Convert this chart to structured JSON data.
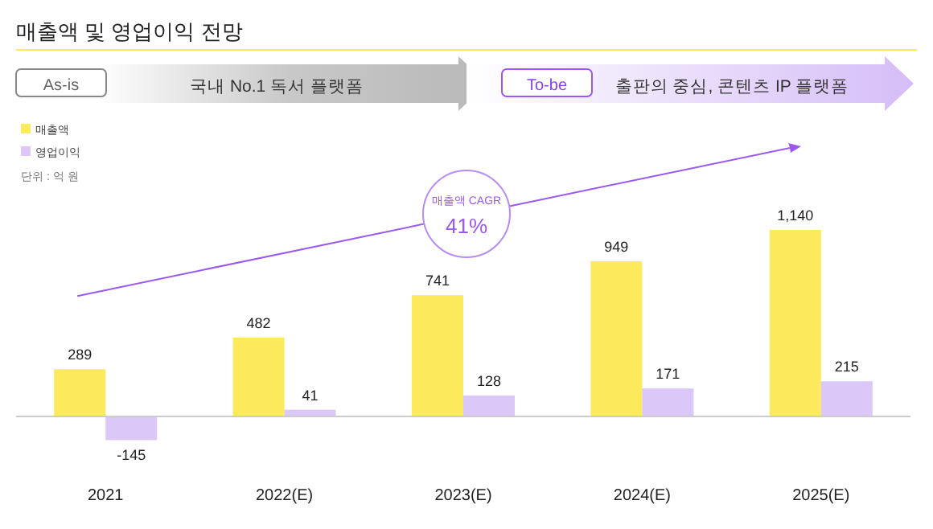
{
  "chart_data": {
    "type": "bar",
    "title": "매출액 및 영업이익 전망",
    "categories": [
      "2021",
      "2022(E)",
      "2023(E)",
      "2024(E)",
      "2025(E)"
    ],
    "series": [
      {
        "name": "매출액",
        "color": "#fde95c",
        "values": [
          289,
          482,
          741,
          949,
          1140
        ],
        "value_labels": [
          "289",
          "482",
          "741",
          "949",
          "1,140"
        ]
      },
      {
        "name": "영업이익",
        "color": "#dcc8f8",
        "values": [
          -145,
          41,
          128,
          171,
          215
        ],
        "value_labels": [
          "-145",
          "41",
          "128",
          "171",
          "215"
        ]
      }
    ],
    "legend": "top left",
    "annotations": [
      "As-is",
      "국내 No.1 독서 플랫폼",
      "To-be",
      "출판의 중심, 콘텐츠 IP 플랫폼",
      "단위 : 억 원",
      "매출액 CAGR",
      "41%"
    ]
  }
}
